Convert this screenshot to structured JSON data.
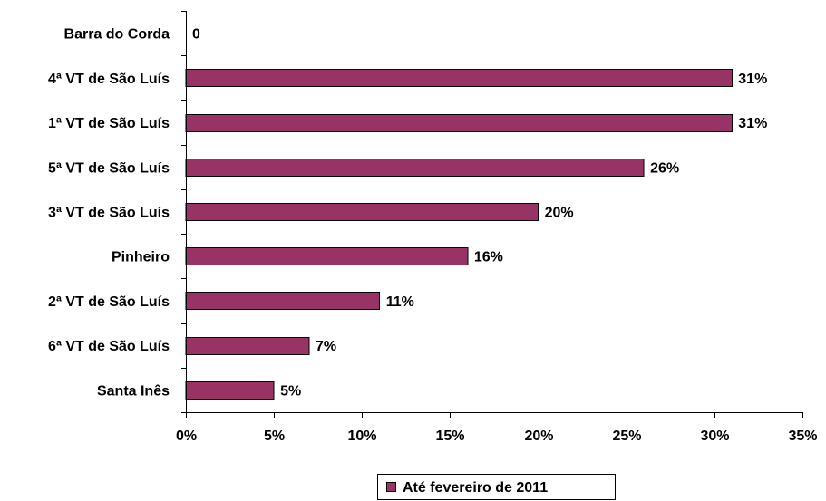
{
  "chart_data": {
    "type": "bar",
    "orientation": "horizontal",
    "categories": [
      "Barra do Corda",
      "4ª VT de São Luís",
      "1ª VT de São Luís",
      "5ª VT de São Luís",
      "3ª VT de São Luís",
      "Pinheiro",
      "2ª VT de São Luís",
      "6ª VT de São Luís",
      "Santa Inês"
    ],
    "series": [
      {
        "name": "Até fevereiro de 2011",
        "color": "#993366",
        "values": [
          0,
          31,
          31,
          26,
          20,
          16,
          11,
          7,
          5
        ],
        "data_labels": [
          "0",
          "31%",
          "31%",
          "26%",
          "20%",
          "16%",
          "11%",
          "7%",
          "5%"
        ]
      }
    ],
    "xlim": [
      0,
      35
    ],
    "x_ticks": [
      0,
      5,
      10,
      15,
      20,
      25,
      30,
      35
    ],
    "x_tick_labels": [
      "0%",
      "5%",
      "10%",
      "15%",
      "20%",
      "25%",
      "30%",
      "35%"
    ],
    "title": "",
    "xlabel": "",
    "ylabel": "",
    "grid": false,
    "legend_position": "bottom"
  }
}
